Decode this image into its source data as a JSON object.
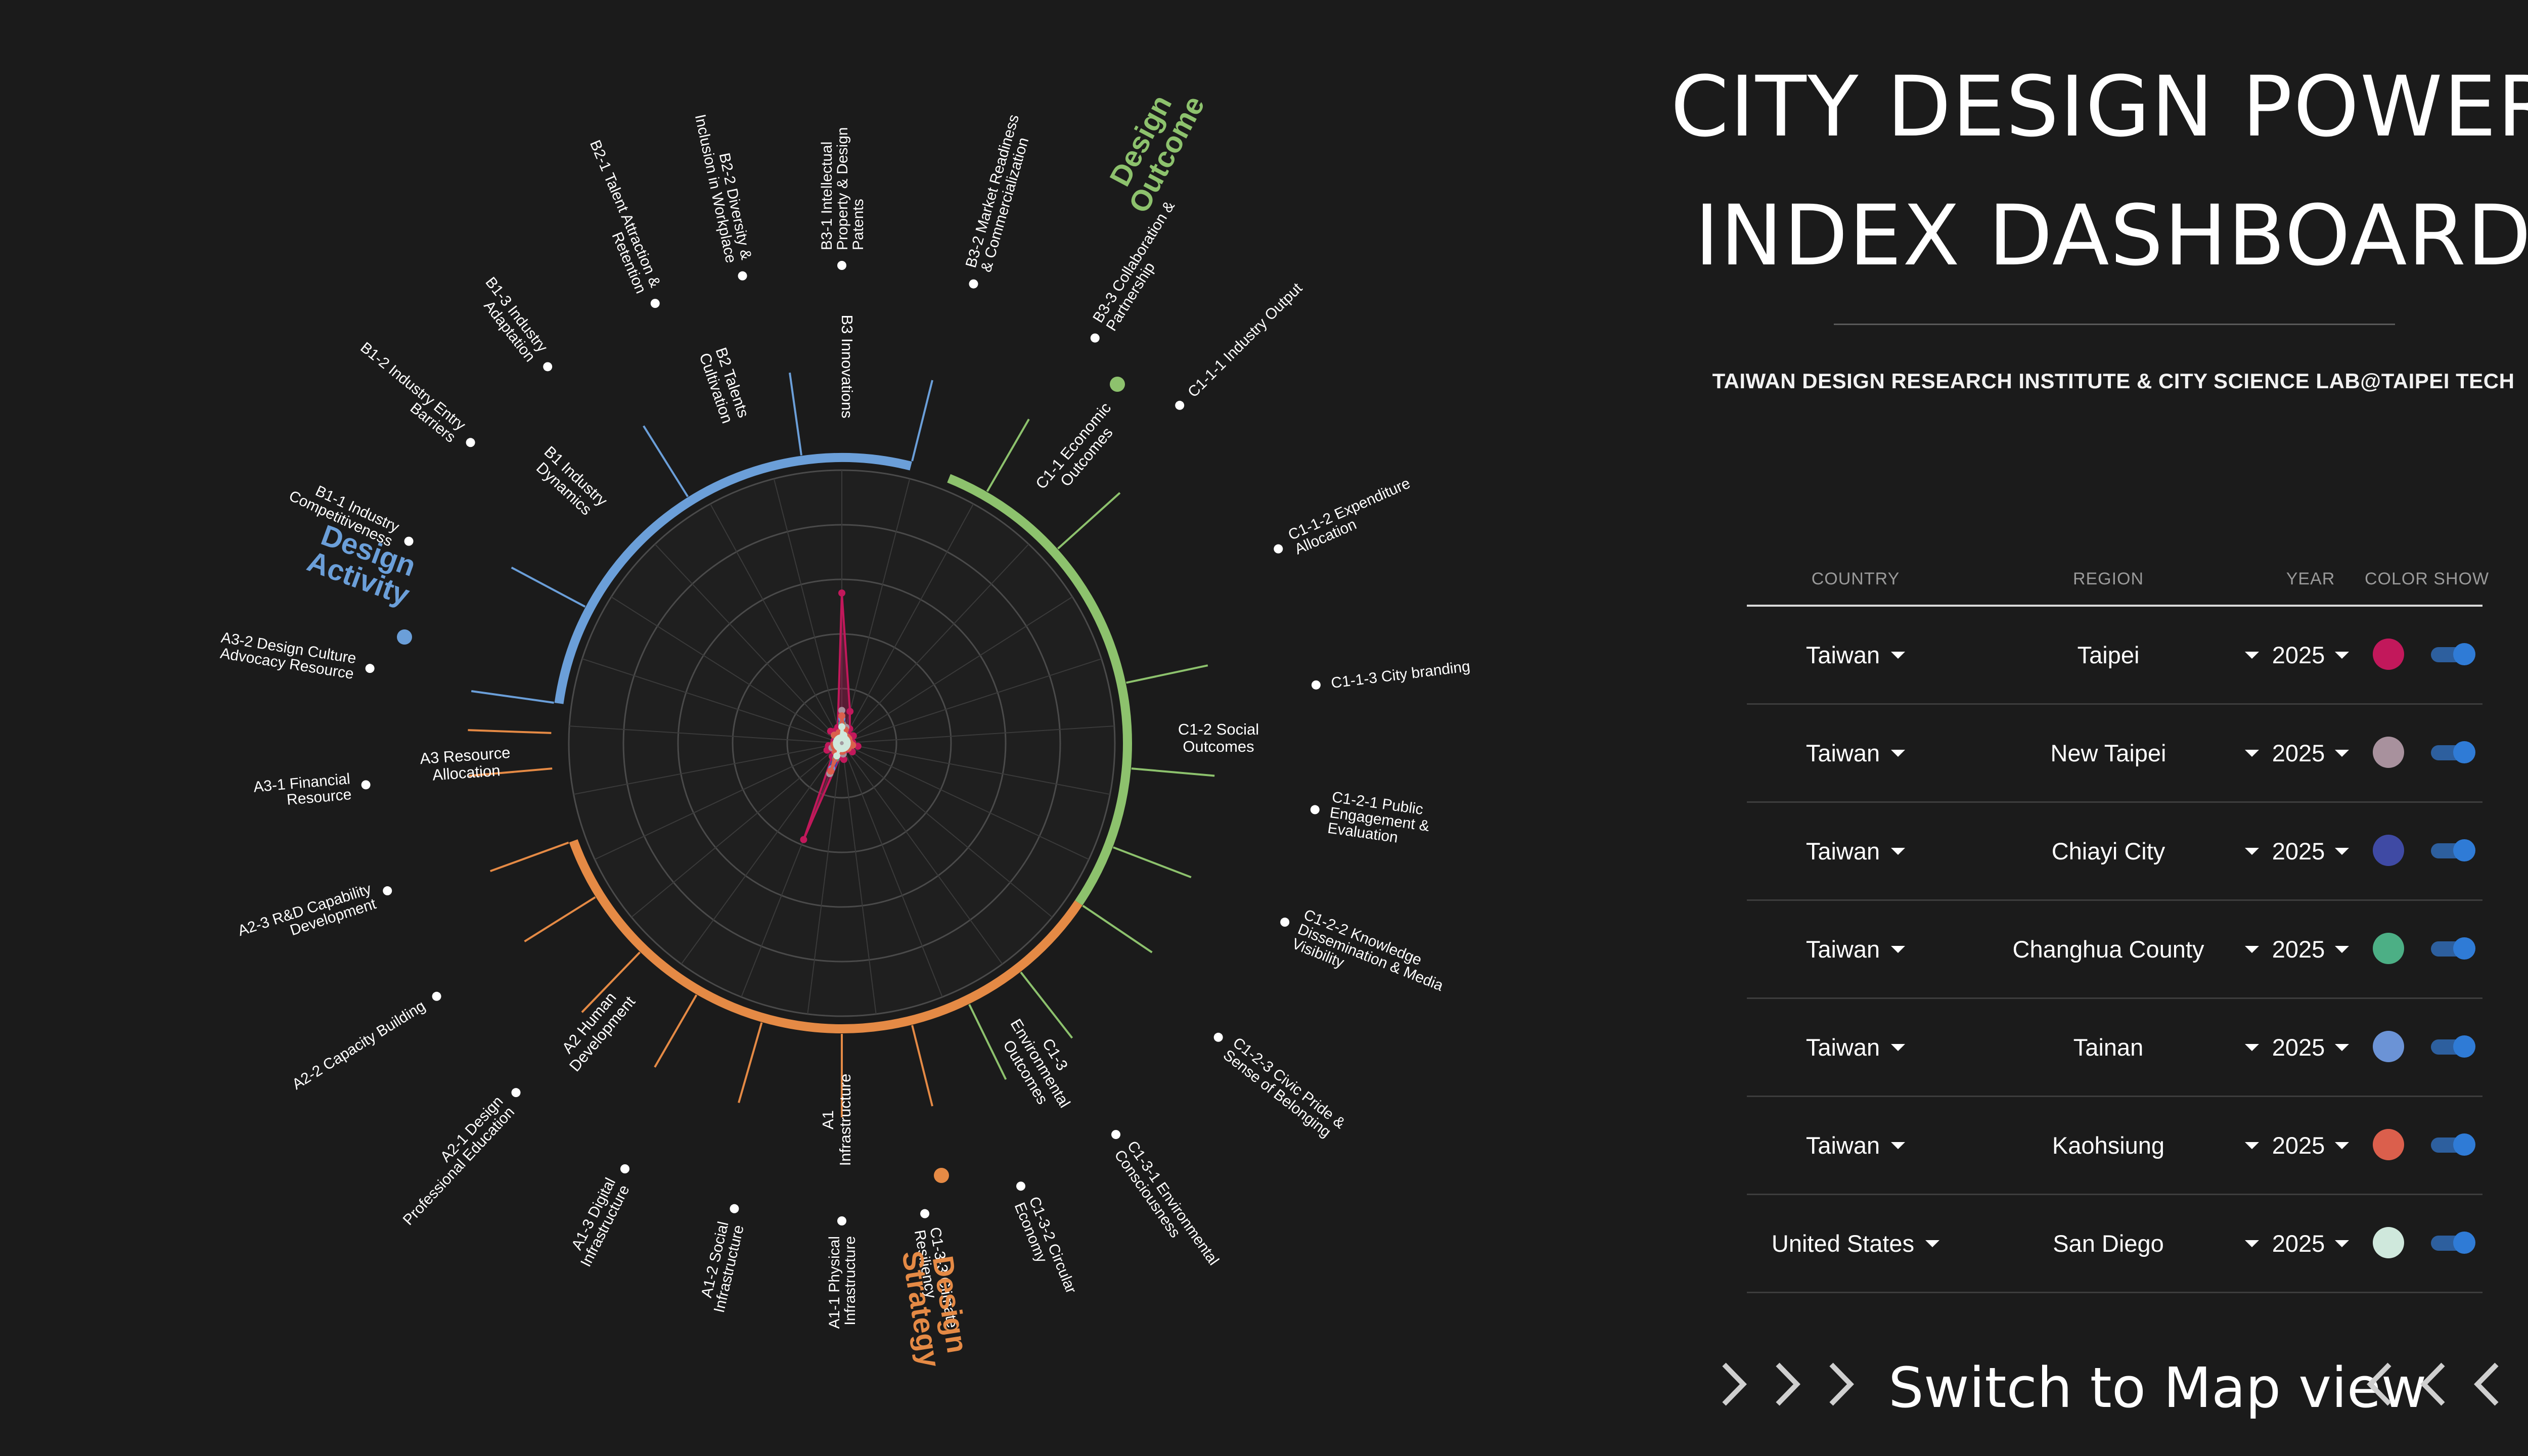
{
  "dashboard": {
    "title_line1": "CITY DESIGN POWER",
    "title_line2": "INDEX DASHBOARD",
    "subtitle": "TAIWAN DESIGN RESEARCH INSTITUTE & CITY SCIENCE LAB@TAIPEI TECH"
  },
  "filter_table": {
    "headers": {
      "country": "COUNTRY",
      "region": "REGION",
      "year": "YEAR",
      "color_show": "COLOR SHOW"
    },
    "rows": [
      {
        "country": "Taiwan",
        "region": "Taipei",
        "year": "2025",
        "color": "#c2185b",
        "show": true
      },
      {
        "country": "Taiwan",
        "region": "New Taipei",
        "year": "2025",
        "color": "#a8919d",
        "show": true
      },
      {
        "country": "Taiwan",
        "region": "Chiayi City",
        "year": "2025",
        "color": "#3f4aa4",
        "show": true
      },
      {
        "country": "Taiwan",
        "region": "Changhua County",
        "year": "2025",
        "color": "#4caf85",
        "show": true
      },
      {
        "country": "Taiwan",
        "region": "Tainan",
        "year": "2025",
        "color": "#6b93d6",
        "show": true
      },
      {
        "country": "Taiwan",
        "region": "Kaohsiung",
        "year": "2025",
        "color": "#db5f4c",
        "show": true
      },
      {
        "country": "United States",
        "region": "San Diego",
        "year": "2025",
        "color": "#cfe8dc",
        "show": true
      }
    ]
  },
  "map_switch": {
    "label": "Switch to Map view"
  },
  "chart_data": {
    "type": "radar",
    "groups": [
      {
        "key": "design-outcome",
        "label": "Design Outcome",
        "color": "#8dc26d"
      },
      {
        "key": "design-activity",
        "label": "Design Activity",
        "color": "#6b9fd9"
      },
      {
        "key": "design-strategy",
        "label": "Design Strategy",
        "color": "#e58a45"
      }
    ],
    "subgroups": [
      {
        "key": "b1",
        "group": "design-activity",
        "label": "B1 Industry\nDynamics"
      },
      {
        "key": "b2",
        "group": "design-activity",
        "label": "B2 Talents\nCultivation"
      },
      {
        "key": "b3",
        "group": "design-activity",
        "label": "B3 Innovations"
      },
      {
        "key": "c11",
        "group": "design-outcome",
        "label": "C1-1 Economic\nOutcomes"
      },
      {
        "key": "c12",
        "group": "design-outcome",
        "label": "C1-2 Social\nOutcomes"
      },
      {
        "key": "c13",
        "group": "design-outcome",
        "label": "C1-3\nEnvironmental\nOutcomes"
      },
      {
        "key": "a1",
        "group": "design-strategy",
        "label": "A1\nInfrastructure"
      },
      {
        "key": "a2",
        "group": "design-strategy",
        "label": "A2 Human\nDevelopment"
      },
      {
        "key": "a3",
        "group": "design-strategy",
        "label": "A3 Resource\nAllocation"
      }
    ],
    "indicators": [
      "B3-1 Intellectual\nProperty & Design\nPatents",
      "B3-2 Market Readiness\n& Commercialization",
      "B3-3 Collaboration &\nPartnership",
      "C1-1-1 Industry Output",
      "C1-1-2 Expenditure\nAllocation",
      "C1-1-3 City branding",
      "C1-2-1 Public\nEngagement &\nEvaluation",
      "C1-2-2 Knowledge\nDissemination & Media\nVisibility",
      "C1-2-3 Civic Pride &\nSense of Belonging",
      "C1-3-1 Environmental\nConsciousness",
      "C1-3-2 Circular\nEconomy",
      "C1-3-3 Climate\nResiliency",
      "A1-1 Physical\nInfrastructure",
      "A1-2 Social\nInfrastructure",
      "A1-3 Digital\nInfrastructure",
      "A2-1 Design\nProfessional Education",
      "A2-2 Capacity Building",
      "A2-3 R&D Capability\nDevelopment",
      "A3-1 Financial\nResource",
      "A3-2 Design Culture\nAdvocacy Resource",
      "B1-1 Industry\nCompetitiveness",
      "B1-2 Industry Entry\nBarriers",
      "B1-3 Industry\nAdaptation",
      "B2-1 Talent Attraction &\nRetention",
      "B2-2 Diversity &\nInclusion in Workplace"
    ],
    "rlim": [
      0,
      1
    ],
    "grid": true,
    "series": [
      {
        "region": "Taipei",
        "color": "#c2185b",
        "values": [
          0.55,
          0.12,
          0.06,
          0.04,
          0.05,
          0.03,
          0.04,
          0.06,
          0.03,
          0.05,
          0.03,
          0.02,
          0.06,
          0.05,
          0.38,
          0.06,
          0.04,
          0.06,
          0.05,
          0.03,
          0.03,
          0.03,
          0.06,
          0.05,
          0.06
        ]
      },
      {
        "region": "New Taipei",
        "color": "#a8919d",
        "values": [
          0.12,
          0.06,
          0.03,
          0.02,
          0.03,
          0.02,
          0.03,
          0.04,
          0.02,
          0.03,
          0.02,
          0.02,
          0.04,
          0.03,
          0.12,
          0.04,
          0.02,
          0.04,
          0.03,
          0.02,
          0.02,
          0.02,
          0.04,
          0.03,
          0.04
        ]
      },
      {
        "region": "Chiayi City",
        "color": "#3f4aa4",
        "values": [
          0.08,
          0.04,
          0.02,
          0.02,
          0.02,
          0.02,
          0.02,
          0.03,
          0.02,
          0.02,
          0.02,
          0.02,
          0.03,
          0.02,
          0.08,
          0.03,
          0.02,
          0.03,
          0.02,
          0.02,
          0.02,
          0.02,
          0.03,
          0.02,
          0.03
        ]
      },
      {
        "region": "Changhua County",
        "color": "#4caf85",
        "values": [
          0.07,
          0.03,
          0.02,
          0.02,
          0.02,
          0.02,
          0.02,
          0.03,
          0.02,
          0.02,
          0.02,
          0.02,
          0.02,
          0.02,
          0.06,
          0.03,
          0.02,
          0.02,
          0.02,
          0.02,
          0.02,
          0.02,
          0.02,
          0.02,
          0.02
        ]
      },
      {
        "region": "Tainan",
        "color": "#6b93d6",
        "values": [
          0.09,
          0.04,
          0.02,
          0.03,
          0.02,
          0.02,
          0.02,
          0.03,
          0.02,
          0.02,
          0.02,
          0.02,
          0.03,
          0.02,
          0.1,
          0.03,
          0.02,
          0.03,
          0.02,
          0.02,
          0.02,
          0.02,
          0.04,
          0.03,
          0.03
        ]
      },
      {
        "region": "Kaohsiung",
        "color": "#db5f4c",
        "values": [
          0.1,
          0.05,
          0.03,
          0.03,
          0.03,
          0.02,
          0.03,
          0.04,
          0.02,
          0.03,
          0.02,
          0.02,
          0.03,
          0.03,
          0.11,
          0.04,
          0.02,
          0.03,
          0.03,
          0.02,
          0.02,
          0.02,
          0.04,
          0.03,
          0.04
        ]
      },
      {
        "region": "San Diego",
        "color": "#cfe8dc",
        "values": [
          0.06,
          0.03,
          0.02,
          0.02,
          0.02,
          0.02,
          0.02,
          0.02,
          0.02,
          0.02,
          0.02,
          0.02,
          0.02,
          0.02,
          0.05,
          0.02,
          0.02,
          0.02,
          0.02,
          0.02,
          0.02,
          0.02,
          0.02,
          0.02,
          0.02
        ]
      }
    ]
  }
}
